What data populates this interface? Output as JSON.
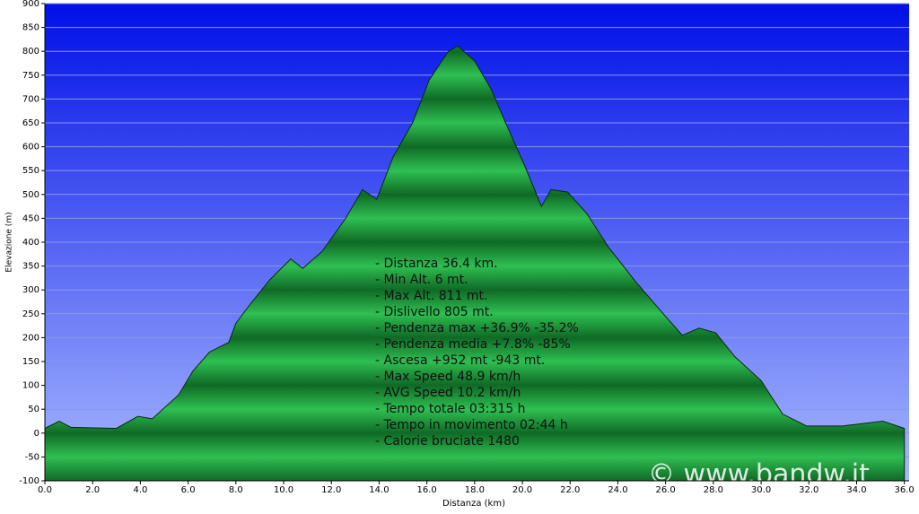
{
  "chart_data": {
    "type": "area",
    "y_label": "Elevazione (m)",
    "x_label": "Distanza (km)",
    "xlim": [
      0,
      36.2
    ],
    "ylim": [
      -100,
      900
    ],
    "xticks": [
      {
        "value": 0,
        "label": "0.0"
      },
      {
        "value": 2,
        "label": "2.0"
      },
      {
        "value": 4,
        "label": "4.0"
      },
      {
        "value": 6,
        "label": "6.0"
      },
      {
        "value": 8,
        "label": "8.0"
      },
      {
        "value": 10,
        "label": "10.0"
      },
      {
        "value": 12,
        "label": "12.0"
      },
      {
        "value": 14,
        "label": "14.0"
      },
      {
        "value": 16,
        "label": "16.0"
      },
      {
        "value": 18,
        "label": "18.0"
      },
      {
        "value": 20,
        "label": "20.0"
      },
      {
        "value": 22,
        "label": "22.0"
      },
      {
        "value": 24,
        "label": "24.0"
      },
      {
        "value": 26,
        "label": "26.0"
      },
      {
        "value": 28,
        "label": "28.0"
      },
      {
        "value": 30,
        "label": "30.0"
      },
      {
        "value": 32,
        "label": "32.0"
      },
      {
        "value": 34,
        "label": "34.0"
      },
      {
        "value": 36,
        "label": "36.0"
      }
    ],
    "yticks": [
      -100,
      -50,
      0,
      50,
      100,
      150,
      200,
      250,
      300,
      350,
      400,
      450,
      500,
      550,
      600,
      650,
      700,
      750,
      800,
      850,
      900
    ],
    "grid": true,
    "color": "#1e9a3c",
    "x": [
      0,
      0.6,
      1.1,
      3.0,
      3.9,
      4.5,
      5.6,
      6.2,
      6.9,
      7.7,
      8.0,
      8.6,
      9.4,
      10.3,
      10.8,
      11.6,
      12.6,
      13.3,
      13.9,
      14.6,
      15.4,
      16.1,
      16.9,
      17.3,
      18.0,
      18.7,
      19.3,
      20.1,
      20.8,
      21.2,
      21.9,
      22.7,
      23.6,
      24.7,
      25.9,
      26.7,
      27.4,
      28.1,
      28.9,
      30.0,
      30.9,
      31.9,
      33.4,
      35.1,
      36.0
    ],
    "values": [
      10,
      25,
      12,
      10,
      35,
      30,
      80,
      130,
      170,
      190,
      230,
      270,
      320,
      365,
      345,
      380,
      450,
      510,
      490,
      580,
      650,
      740,
      800,
      811,
      780,
      720,
      650,
      560,
      475,
      510,
      505,
      460,
      390,
      320,
      250,
      205,
      220,
      210,
      160,
      110,
      40,
      15,
      15,
      25,
      10
    ],
    "annotations": [
      "- Distanza 36.4 km.",
      "- Min Alt. 6 mt.",
      "- Max Alt. 811 mt.",
      "- Dislivello 805 mt.",
      "- Pendenza max +36.9% -35.2%",
      "- Pendenza media +7.8% -85%",
      "- Ascesa +952 mt -943 mt.",
      "- Max Speed 48.9 km/h",
      "- AVG Speed 10.2 km/h",
      "- Tempo totale 03:315 h",
      "- Tempo in movimento 02:44 h",
      "- Calorie bruciate 1480"
    ],
    "watermark": "© www.bandw.it"
  }
}
